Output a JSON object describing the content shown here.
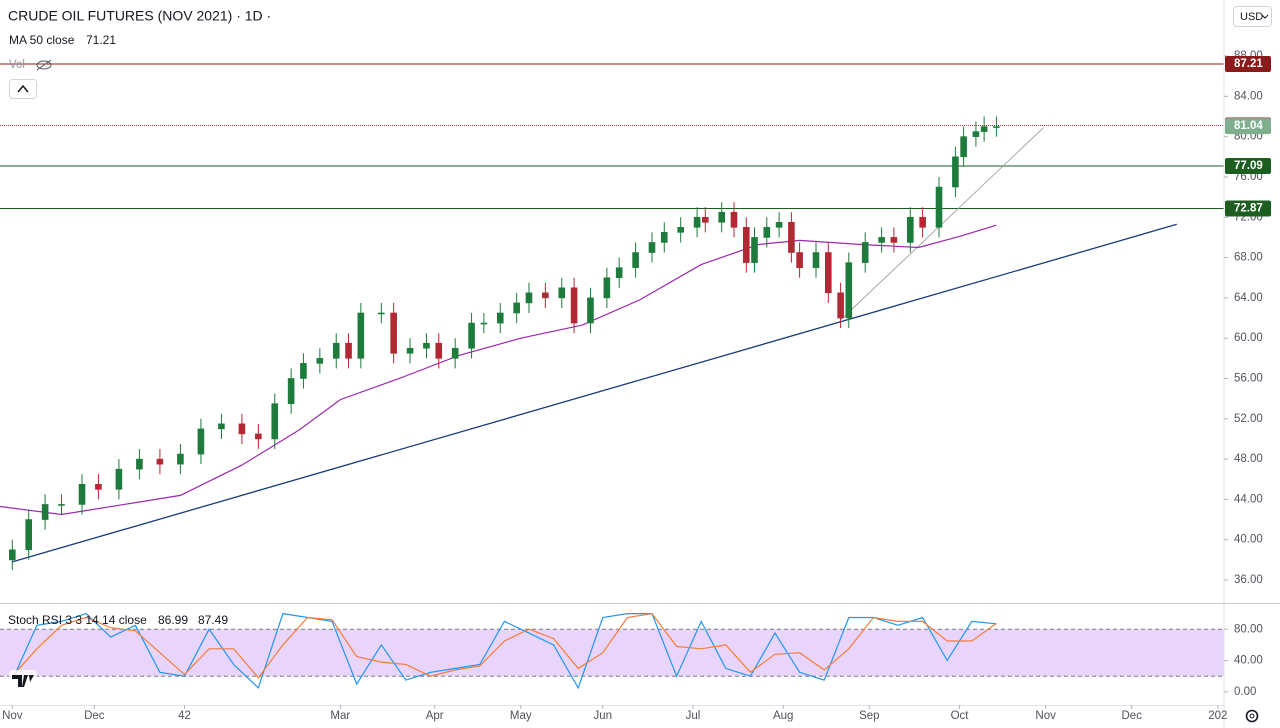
{
  "chart_data": [
    {
      "type": "candlestick",
      "title": "CRUDE OIL FUTURES (NOV 2021) · 1D ·",
      "currency": "USD",
      "volume_label": "Vol",
      "x": [
        0,
        4,
        8,
        12,
        17,
        21,
        26,
        31,
        36,
        41,
        46,
        51,
        56,
        60,
        64,
        68,
        71,
        75,
        79,
        82,
        85,
        90,
        93,
        97,
        101,
        104,
        108,
        112,
        115,
        119,
        123,
        126,
        130,
        134,
        137,
        141,
        145,
        148,
        152,
        156,
        159,
        163,
        167,
        169,
        173,
        176,
        179,
        181,
        184,
        187,
        190,
        192,
        196,
        199,
        202,
        204,
        208,
        212,
        215,
        219,
        222,
        226,
        230,
        232,
        235,
        237,
        240
      ],
      "open": [
        38,
        39,
        42,
        43.5,
        43.5,
        45.5,
        45,
        47,
        48,
        47.5,
        48.5,
        51,
        51.5,
        50.5,
        50,
        53.5,
        56,
        57.5,
        58,
        59.5,
        58,
        62.5,
        62.5,
        58.5,
        59,
        59.5,
        58,
        59,
        61.5,
        61.5,
        62.5,
        63.5,
        64.5,
        64,
        65,
        61.5,
        64,
        66,
        67,
        68.5,
        69.5,
        70.5,
        71,
        72,
        71.5,
        72.5,
        71,
        67.5,
        70,
        71,
        71.5,
        68.5,
        67,
        68.5,
        64.5,
        62,
        67.5,
        69.5,
        70,
        69.5,
        72,
        71,
        75,
        78,
        80,
        80.5,
        81
      ],
      "high": [
        40,
        43,
        44.5,
        44.5,
        46.5,
        46.5,
        48,
        49,
        49,
        49.5,
        52,
        52.5,
        52.5,
        51.5,
        54.5,
        57,
        58.5,
        59,
        60.5,
        60.5,
        63.5,
        63.5,
        63.5,
        60,
        60.5,
        60.5,
        60,
        62.5,
        62.5,
        63.5,
        64.5,
        65.5,
        65.5,
        66,
        66,
        65,
        67,
        68,
        69.5,
        70.5,
        71.5,
        72,
        73,
        73,
        73.5,
        73.5,
        72,
        71,
        72,
        72.5,
        72.5,
        69.5,
        69.5,
        69.5,
        65.5,
        68.5,
        70.5,
        71,
        71,
        73,
        73,
        76,
        79,
        81,
        81.5,
        82,
        82
      ],
      "low": [
        37,
        38,
        41,
        42.5,
        42.5,
        44,
        44,
        46,
        46.5,
        46.5,
        47.5,
        50,
        49.5,
        49,
        49,
        52.5,
        55,
        56.5,
        57,
        57,
        57,
        61.5,
        57.5,
        57.5,
        58,
        57,
        57,
        58,
        60.5,
        60.5,
        61.5,
        62.5,
        63,
        63,
        60.5,
        60.5,
        63,
        65,
        66,
        67.5,
        68.5,
        69.5,
        70,
        70.5,
        70.5,
        70,
        66.5,
        66.5,
        69,
        70,
        67.5,
        66,
        66,
        63.5,
        61,
        61,
        66.5,
        68.5,
        68.5,
        68.5,
        70,
        70,
        74,
        77,
        79,
        79.5,
        80
      ],
      "close": [
        39,
        42,
        43.5,
        43.5,
        45.5,
        45,
        47,
        48,
        47.5,
        48.5,
        51,
        51.5,
        50.5,
        50,
        53.5,
        56,
        57.5,
        58,
        59.5,
        58,
        62.5,
        62.5,
        58.5,
        59,
        59.5,
        58,
        59,
        61.5,
        61.5,
        62.5,
        63.5,
        64.5,
        64,
        65,
        61.5,
        64,
        66,
        67,
        68.5,
        69.5,
        70.5,
        71,
        72,
        71.5,
        72.5,
        71,
        67.5,
        70,
        71,
        71.5,
        68.5,
        67,
        68.5,
        64.5,
        62,
        67.5,
        69.5,
        70,
        69.5,
        72,
        71,
        75,
        78,
        80,
        80.5,
        81,
        81
      ],
      "up_color": "#1e7b3c",
      "down_color": "#b22833",
      "series": [
        {
          "name": "MA 50 close",
          "color": "#9c27b0",
          "x": [
            -3,
            12,
            41,
            56,
            70,
            80,
            95,
            109,
            124,
            139,
            153,
            168,
            182,
            192,
            207,
            221,
            231,
            240
          ],
          "values": [
            43.3,
            42.5,
            44.4,
            47.4,
            50.9,
            53.9,
            56.1,
            58.3,
            60,
            61.3,
            63.8,
            67.3,
            69.3,
            69.7,
            69.3,
            69,
            70.1,
            71.21
          ]
        }
      ],
      "horizontal_lines": [
        {
          "value": 87.21,
          "color": "#8b1a1a"
        },
        {
          "value": 81.11,
          "color": "#b22833",
          "style": "dotted"
        },
        {
          "value": 77.09,
          "color": "#1b5e20"
        },
        {
          "value": 72.87,
          "color": "#1b5e20"
        }
      ],
      "last_price": 81.04,
      "last_price_color": "#7faf8f",
      "trendlines": [
        {
          "x": [
            0,
            284
          ],
          "y": [
            37.8,
            71.3
          ],
          "color": "#1a3a7a"
        },
        {
          "x": [
            202,
            251.5
          ],
          "y": [
            61.8,
            80.9
          ],
          "color": "#9e9e9e"
        }
      ],
      "xlim": [
        -3,
        295.5
      ],
      "ylim": [
        33.72,
        93.56
      ],
      "yticks": [
        {
          "value": 36,
          "label": "36.00"
        },
        {
          "value": 40,
          "label": "40.00"
        },
        {
          "value": 44,
          "label": "44.00"
        },
        {
          "value": 48,
          "label": "48.00"
        },
        {
          "value": 52,
          "label": "52.00"
        },
        {
          "value": 56,
          "label": "56.00"
        },
        {
          "value": 60,
          "label": "60.00"
        },
        {
          "value": 64,
          "label": "64.00"
        },
        {
          "value": 68,
          "label": "68.00"
        },
        {
          "value": 72,
          "label": "72.00"
        },
        {
          "value": 76,
          "label": "76.00"
        },
        {
          "value": 80,
          "label": "80.00"
        },
        {
          "value": 84,
          "label": "84.00"
        },
        {
          "value": 88,
          "label": "88.00"
        }
      ]
    },
    {
      "type": "line",
      "title": "Stoch RSI 3 3 14 14 close",
      "x": [
        0,
        6,
        12,
        18,
        24,
        30,
        36,
        42,
        48,
        54,
        60,
        66,
        72,
        78,
        84,
        90,
        96,
        102,
        108,
        114,
        120,
        126,
        132,
        138,
        144,
        150,
        156,
        162,
        168,
        174,
        180,
        186,
        192,
        198,
        204,
        210,
        216,
        222,
        228,
        234,
        240
      ],
      "series": [
        {
          "color": "#2196f3",
          "values": [
            15,
            85,
            90,
            100,
            70,
            85,
            25,
            20,
            80,
            35,
            5,
            100,
            95,
            90,
            10,
            60,
            15,
            25,
            30,
            35,
            90,
            75,
            60,
            5,
            95,
            100,
            100,
            20,
            90,
            30,
            20,
            75,
            25,
            15,
            95,
            95,
            85,
            95,
            40,
            90,
            86.99
          ]
        },
        {
          "color": "#f57c3a",
          "values": [
            20,
            55,
            85,
            95,
            82,
            78,
            50,
            22,
            55,
            55,
            18,
            60,
            95,
            92,
            45,
            38,
            35,
            20,
            28,
            33,
            65,
            80,
            68,
            30,
            50,
            95,
            100,
            58,
            55,
            60,
            25,
            48,
            50,
            28,
            55,
            95,
            90,
            90,
            65,
            65,
            87.49
          ]
        }
      ],
      "band": [
        20,
        80
      ],
      "band_color": "#e9d5fb",
      "xlim": [
        -3,
        295.5
      ],
      "ylim": [
        -16.8,
        113.5
      ],
      "yticks": [
        {
          "value": 0,
          "label": "0.00"
        },
        {
          "value": 40,
          "label": "40.00"
        },
        {
          "value": 80,
          "label": "80.00"
        }
      ],
      "xticks": [
        {
          "value": 0,
          "label": "Nov"
        },
        {
          "value": 20,
          "label": "Dec"
        },
        42,
        {
          "value": 80,
          "label": "Mar"
        },
        {
          "value": 103,
          "label": "Apr"
        },
        {
          "value": 124,
          "label": "May"
        },
        {
          "value": 144,
          "label": "Jun"
        },
        {
          "value": 166,
          "label": "Jul"
        },
        {
          "value": 188,
          "label": "Aug"
        },
        {
          "value": 209,
          "label": "Sep"
        },
        {
          "value": 231,
          "label": "Oct"
        },
        {
          "value": 252,
          "label": "Nov"
        },
        {
          "value": 273,
          "label": "Dec"
        },
        {
          "value": 294,
          "label": "202"
        }
      ]
    }
  ]
}
